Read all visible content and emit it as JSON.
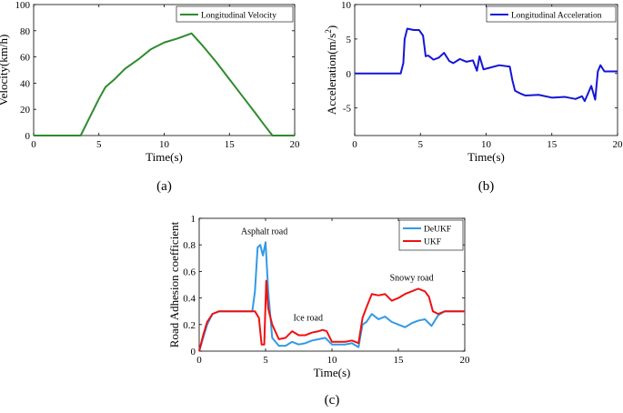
{
  "chart_data": [
    {
      "type": "line",
      "panel_label": "(a)",
      "xlabel": "Time(s)",
      "ylabel": "Velocity(km/h)",
      "xlim": [
        0,
        20
      ],
      "ylim": [
        0,
        100
      ],
      "xticks": [
        0,
        5,
        10,
        15,
        20
      ],
      "yticks": [
        0,
        20,
        40,
        60,
        80,
        100
      ],
      "legend_position": "top-right",
      "series": [
        {
          "name": "Longitudinal Velocity",
          "color": "#2e8b2e",
          "x": [
            0,
            3.6,
            4.2,
            5.0,
            5.5,
            6.2,
            7.0,
            8.0,
            9.0,
            10.0,
            11.0,
            12.1,
            13.0,
            14.0,
            15.0,
            16.0,
            17.0,
            17.6,
            18.3,
            20
          ],
          "y": [
            0,
            0,
            12,
            28,
            37,
            43,
            51,
            58,
            66,
            71,
            74,
            78,
            68,
            56,
            43,
            30,
            17,
            9,
            0,
            0
          ]
        }
      ]
    },
    {
      "type": "line",
      "panel_label": "(b)",
      "xlabel": "Time(s)",
      "ylabel": "Acceleration(m/s^2)",
      "xlim": [
        0,
        20
      ],
      "ylim": [
        -9,
        10
      ],
      "xticks": [
        0,
        5,
        10,
        15,
        20
      ],
      "yticks": [
        -5,
        0,
        5,
        10
      ],
      "legend_position": "top-right",
      "series": [
        {
          "name": "Longitudinal Acceleration",
          "color": "#1515d8",
          "x": [
            0,
            3.5,
            3.7,
            3.8,
            4.0,
            4.5,
            4.9,
            5.2,
            5.4,
            5.6,
            6.0,
            6.4,
            6.8,
            7.2,
            7.5,
            8.0,
            8.5,
            9.0,
            9.3,
            9.5,
            9.8,
            10.2,
            11.0,
            11.8,
            12.0,
            12.2,
            12.6,
            13.0,
            14.0,
            15.0,
            16.0,
            16.8,
            17.3,
            17.5,
            17.8,
            18.0,
            18.3,
            18.5,
            18.7,
            19.0,
            20
          ],
          "y": [
            0,
            0,
            1.5,
            5,
            6.5,
            6.3,
            6.3,
            5.5,
            2.5,
            2.6,
            2,
            2.3,
            3,
            1.8,
            1.5,
            2.1,
            1.7,
            1.9,
            0.4,
            2.5,
            0.6,
            0.8,
            1.2,
            1.0,
            -1.0,
            -2.5,
            -2.9,
            -3.2,
            -3.1,
            -3.5,
            -3.4,
            -3.7,
            -3.3,
            -4.0,
            -2.7,
            -1.8,
            -3.8,
            0.3,
            1.2,
            0.3,
            0.3
          ]
        }
      ]
    },
    {
      "type": "line",
      "panel_label": "(c)",
      "xlabel": "Time(s)",
      "ylabel": "Road Adhesion coefficient",
      "xlim": [
        0,
        20
      ],
      "ylim": [
        0,
        1
      ],
      "xticks": [
        0,
        5,
        10,
        15,
        20
      ],
      "yticks": [
        0,
        0.2,
        0.4,
        0.6,
        0.8,
        1
      ],
      "legend_position": "top-right",
      "annotations": [
        {
          "text": "Asphalt road",
          "x": 4.9,
          "y": 0.88
        },
        {
          "text": "Ice road",
          "x": 8.2,
          "y": 0.23
        },
        {
          "text": "Snowy road",
          "x": 16.0,
          "y": 0.53
        }
      ],
      "series": [
        {
          "name": "DeUKF",
          "color": "#3399e6",
          "x": [
            0,
            0.3,
            0.6,
            1.0,
            1.5,
            2.0,
            4.0,
            4.2,
            4.4,
            4.6,
            4.8,
            5.0,
            5.2,
            5.5,
            6.0,
            6.5,
            7.0,
            7.5,
            8.0,
            8.5,
            9.0,
            9.5,
            10.0,
            10.5,
            11.0,
            11.5,
            12.0,
            12.3,
            12.6,
            13.0,
            13.5,
            14.0,
            14.5,
            15.0,
            15.5,
            16.0,
            16.5,
            17.0,
            17.5,
            18.0,
            18.5,
            20
          ],
          "y": [
            0,
            0.1,
            0.2,
            0.28,
            0.3,
            0.3,
            0.3,
            0.45,
            0.78,
            0.8,
            0.72,
            0.82,
            0.45,
            0.1,
            0.04,
            0.04,
            0.07,
            0.05,
            0.06,
            0.08,
            0.09,
            0.1,
            0.05,
            0.05,
            0.05,
            0.06,
            0.03,
            0.2,
            0.22,
            0.28,
            0.24,
            0.26,
            0.22,
            0.2,
            0.18,
            0.21,
            0.23,
            0.24,
            0.19,
            0.27,
            0.3,
            0.3
          ]
        },
        {
          "name": "UKF",
          "color": "#ee1111",
          "x": [
            0,
            0.3,
            0.6,
            1.0,
            1.5,
            2.0,
            4.2,
            4.5,
            4.7,
            4.9,
            5.05,
            5.2,
            5.5,
            6.0,
            6.5,
            7.0,
            7.5,
            8.0,
            8.5,
            9.0,
            9.3,
            9.6,
            10.0,
            10.5,
            11.0,
            11.5,
            12.0,
            12.3,
            12.6,
            13.0,
            13.5,
            14.0,
            14.5,
            15.0,
            15.5,
            16.0,
            16.5,
            17.0,
            17.3,
            17.6,
            18.0,
            18.5,
            20
          ],
          "y": [
            0,
            0.12,
            0.22,
            0.28,
            0.3,
            0.3,
            0.3,
            0.25,
            0.05,
            0.05,
            0.53,
            0.32,
            0.2,
            0.09,
            0.1,
            0.15,
            0.12,
            0.12,
            0.14,
            0.15,
            0.16,
            0.15,
            0.07,
            0.07,
            0.07,
            0.08,
            0.06,
            0.25,
            0.33,
            0.43,
            0.42,
            0.43,
            0.38,
            0.4,
            0.43,
            0.45,
            0.47,
            0.45,
            0.41,
            0.3,
            0.28,
            0.3,
            0.3
          ]
        }
      ]
    }
  ]
}
